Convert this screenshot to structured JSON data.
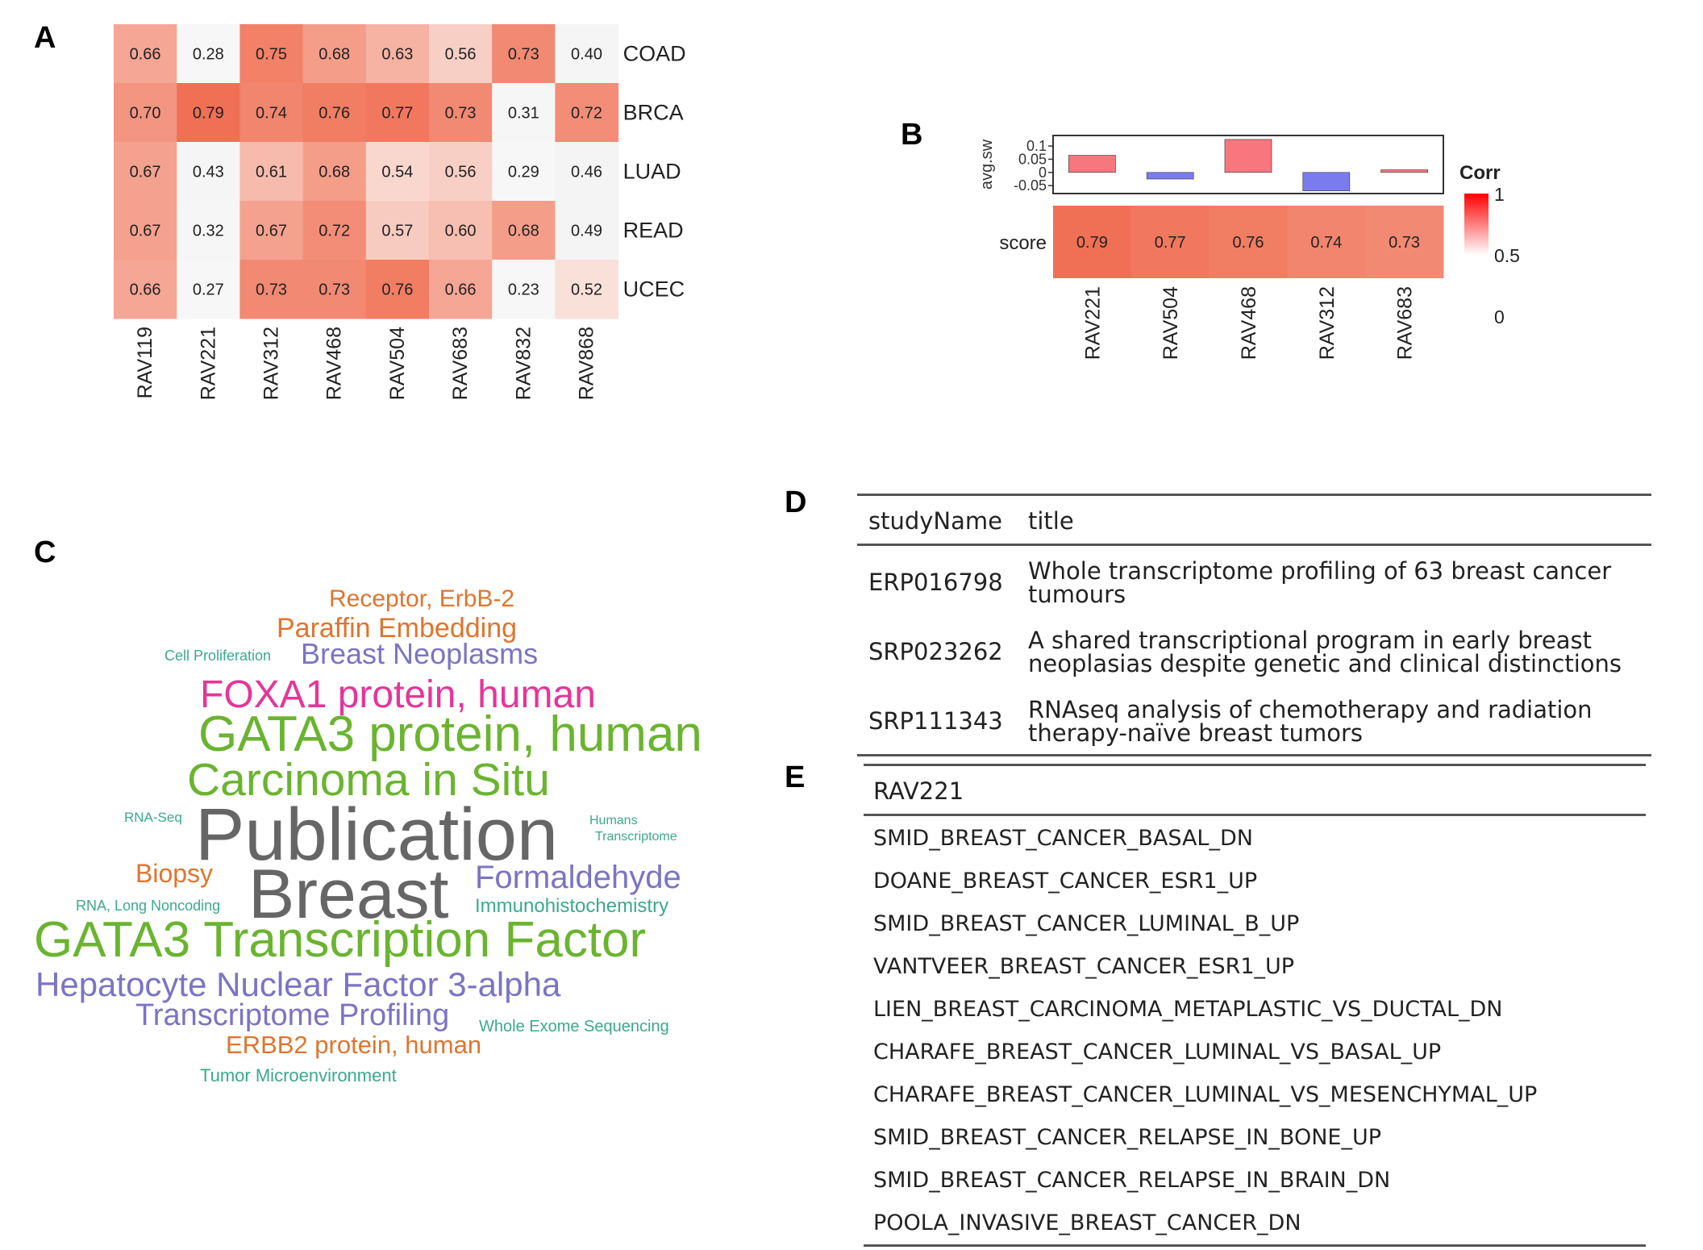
{
  "panels": {
    "a": "A",
    "b": "B",
    "c": "C",
    "d": "D",
    "e": "E"
  },
  "chart_data": [
    {
      "type": "heatmap",
      "columns": [
        "RAV119",
        "RAV221",
        "RAV312",
        "RAV468",
        "RAV504",
        "RAV683",
        "RAV832",
        "RAV868"
      ],
      "rows": [
        "COAD",
        "BRCA",
        "LUAD",
        "READ",
        "UCEC"
      ],
      "values": [
        [
          0.66,
          0.28,
          0.75,
          0.68,
          0.63,
          0.56,
          0.73,
          0.4
        ],
        [
          0.7,
          0.79,
          0.74,
          0.76,
          0.77,
          0.73,
          0.31,
          0.72
        ],
        [
          0.67,
          0.43,
          0.61,
          0.68,
          0.54,
          0.56,
          0.29,
          0.46
        ],
        [
          0.67,
          0.32,
          0.67,
          0.72,
          0.57,
          0.6,
          0.68,
          0.49
        ],
        [
          0.66,
          0.27,
          0.73,
          0.73,
          0.76,
          0.66,
          0.23,
          0.52
        ]
      ],
      "labels": [
        [
          "0.66",
          "0.28",
          "0.75",
          "0.68",
          "0.63",
          "0.56",
          "0.73",
          "0.40"
        ],
        [
          "0.70",
          "0.79",
          "0.74",
          "0.76",
          "0.77",
          "0.73",
          "0.31",
          "0.72"
        ],
        [
          "0.67",
          "0.43",
          "0.61",
          "0.68",
          "0.54",
          "0.56",
          "0.29",
          "0.46"
        ],
        [
          "0.67",
          "0.32",
          "0.67",
          "0.72",
          "0.57",
          "0.60",
          "0.68",
          "0.49"
        ],
        [
          "0.66",
          "0.27",
          "0.73",
          "0.73",
          "0.76",
          "0.66",
          "0.23",
          "0.52"
        ]
      ],
      "colors": {
        "low": "#ffffff",
        "mid": "#f4f4f4",
        "high": "#ef6548"
      }
    },
    {
      "type": "bar",
      "categories": [
        "RAV221",
        "RAV504",
        "RAV468",
        "RAV312",
        "RAV683"
      ],
      "ylabel": "avg.sw",
      "values": [
        0.065,
        -0.025,
        0.125,
        -0.07,
        0.01
      ],
      "ylim": [
        -0.08,
        0.14
      ],
      "yticks": [
        0.1,
        0.05,
        0,
        -0.05
      ],
      "ytick_labels": [
        "0.1",
        "0.05",
        "0",
        "-0.05"
      ],
      "colors": {
        "positive": "#f8767d",
        "negative": "#7b7bf0"
      }
    },
    {
      "type": "heatmap",
      "row_label": "score",
      "columns": [
        "RAV221",
        "RAV504",
        "RAV468",
        "RAV312",
        "RAV683"
      ],
      "values": [
        0.79,
        0.77,
        0.76,
        0.74,
        0.73
      ],
      "labels": [
        "0.79",
        "0.77",
        "0.76",
        "0.74",
        "0.73"
      ],
      "legend": {
        "title": "Corr",
        "ticks": [
          "1",
          "0.5",
          "0"
        ],
        "placement": "right",
        "colors": [
          "#ff0000",
          "#ffffff",
          "#ffffff"
        ]
      }
    }
  ],
  "wordcloud": [
    {
      "text": "Receptor, ErbB-2",
      "color": "#e0742e"
    },
    {
      "text": "Paraffin Embedding",
      "color": "#e0742e"
    },
    {
      "text": "Cell Proliferation",
      "color": "#3aaa8c"
    },
    {
      "text": "Breast Neoplasms",
      "color": "#7b74c4"
    },
    {
      "text": "FOXA1 protein, human",
      "color": "#e5359a"
    },
    {
      "text": "GATA3 protein, human",
      "color": "#6ab42f"
    },
    {
      "text": "Carcinoma in Situ",
      "color": "#6ab42f"
    },
    {
      "text": "RNA-Seq",
      "color": "#3aaa8c"
    },
    {
      "text": "Publication",
      "color": "#666666"
    },
    {
      "text": "Humans",
      "color": "#3aaa8c"
    },
    {
      "text": "Transcriptome",
      "color": "#3aaa8c"
    },
    {
      "text": "Biopsy",
      "color": "#e0742e"
    },
    {
      "text": "Breast",
      "color": "#666666"
    },
    {
      "text": "Formaldehyde",
      "color": "#7b74c4"
    },
    {
      "text": "RNA, Long Noncoding",
      "color": "#3aaa8c"
    },
    {
      "text": "Immunohistochemistry",
      "color": "#3aaa8c"
    },
    {
      "text": "GATA3 Transcription Factor",
      "color": "#6ab42f"
    },
    {
      "text": "Hepatocyte Nuclear Factor 3-alpha",
      "color": "#7b74c4"
    },
    {
      "text": "Transcriptome Profiling",
      "color": "#7b74c4"
    },
    {
      "text": "Whole Exome Sequencing",
      "color": "#3aaa8c"
    },
    {
      "text": "ERBB2 protein, human",
      "color": "#e0742e"
    },
    {
      "text": "Tumor Microenvironment",
      "color": "#3aaa8c"
    }
  ],
  "studies_table": {
    "headers": [
      "studyName",
      "title"
    ],
    "rows": [
      [
        "ERP016798",
        "Whole transcriptome profiling of 63 breast cancer",
        "tumours"
      ],
      [
        "SRP023262",
        "A shared transcriptional program in early breast",
        "neoplasias despite genetic and clinical distinctions"
      ],
      [
        "SRP111343",
        "RNAseq analysis of chemotherapy and radiation",
        "therapy-naïve breast tumors"
      ]
    ]
  },
  "genesets_table": {
    "header": "RAV221",
    "rows": [
      "SMID_BREAST_CANCER_BASAL_DN",
      "DOANE_BREAST_CANCER_ESR1_UP",
      "SMID_BREAST_CANCER_LUMINAL_B_UP",
      "VANTVEER_BREAST_CANCER_ESR1_UP",
      "LIEN_BREAST_CARCINOMA_METAPLASTIC_VS_DUCTAL_DN",
      "CHARAFE_BREAST_CANCER_LUMINAL_VS_BASAL_UP",
      "CHARAFE_BREAST_CANCER_LUMINAL_VS_MESENCHYMAL_UP",
      "SMID_BREAST_CANCER_RELAPSE_IN_BONE_UP",
      "SMID_BREAST_CANCER_RELAPSE_IN_BRAIN_DN",
      "POOLA_INVASIVE_BREAST_CANCER_DN"
    ]
  }
}
